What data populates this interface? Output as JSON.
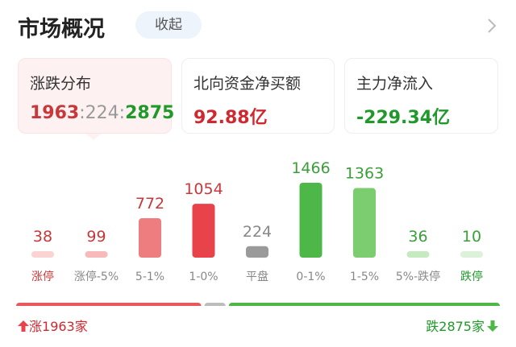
{
  "header": {
    "title": "市场概况",
    "collapse": "收起"
  },
  "cards": [
    {
      "title": "涨跌分布",
      "breadth": {
        "up": 1963,
        "flat": 224,
        "down": 2875,
        "separator": ":"
      }
    },
    {
      "title": "北向资金净买额",
      "value": "92.88亿",
      "color": "#d0282e"
    },
    {
      "title": "主力净流入",
      "value": "-229.34亿",
      "color": "#1f9a2a"
    }
  ],
  "distribution": {
    "bars": [
      {
        "label": "涨停",
        "value": 38,
        "color": "#fbd3d3",
        "label_color": "#c8383a",
        "value_color": "#c8383a"
      },
      {
        "label": "涨停-5%",
        "value": 99,
        "color": "#f7b9b9",
        "label_color": "#888888",
        "value_color": "#c8383a"
      },
      {
        "label": "5-1%",
        "value": 772,
        "color": "#ee7d7f",
        "label_color": "#888888",
        "value_color": "#c8383a"
      },
      {
        "label": "1-0%",
        "value": 1054,
        "color": "#e8434a",
        "label_color": "#888888",
        "value_color": "#c8383a"
      },
      {
        "label": "平盘",
        "value": 224,
        "color": "#9a9a9a",
        "label_color": "#888888",
        "value_color": "#888888"
      },
      {
        "label": "0-1%",
        "value": 1466,
        "color": "#4db748",
        "label_color": "#888888",
        "value_color": "#3a9e3a"
      },
      {
        "label": "1-5%",
        "value": 1363,
        "color": "#7ccd6f",
        "label_color": "#888888",
        "value_color": "#3a9e3a"
      },
      {
        "label": "5%-跌停",
        "value": 36,
        "color": "#c6eabf",
        "label_color": "#888888",
        "value_color": "#3a9e3a"
      },
      {
        "label": "跌停",
        "value": 10,
        "color": "#dcf2d8",
        "label_color": "#1f9a2a",
        "value_color": "#3a9e3a"
      }
    ]
  },
  "footer": {
    "up_prefix": "涨",
    "down_prefix": "跌",
    "unit": "家",
    "up_color": "#e8585c",
    "flat_color": "#bdbdbd",
    "down_color": "#4db748"
  }
}
